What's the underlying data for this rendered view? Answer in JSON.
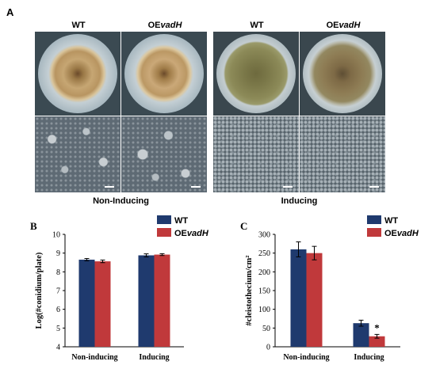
{
  "panel_a": {
    "letter": "A",
    "groups": [
      {
        "label": "Non-Inducing",
        "strains": [
          {
            "prefix": "WT",
            "italic": ""
          },
          {
            "prefix": "OE",
            "italic": "vadH"
          }
        ]
      },
      {
        "label": "Inducing",
        "strains": [
          {
            "prefix": "WT",
            "italic": ""
          },
          {
            "prefix": "OE",
            "italic": "vadH"
          }
        ]
      }
    ]
  },
  "chart_data": [
    {
      "panel_letter": "B",
      "type": "bar",
      "categories": [
        "Non-inducing",
        "Inducing"
      ],
      "series": [
        {
          "name_prefix": "WT",
          "name_italic": "",
          "color": "#1f3a6e",
          "values": [
            8.65,
            8.88
          ],
          "errors": [
            0.06,
            0.08
          ]
        },
        {
          "name_prefix": "OE",
          "name_italic": "vadH",
          "color": "#c0393b",
          "values": [
            8.56,
            8.92
          ],
          "errors": [
            0.07,
            0.05
          ]
        }
      ],
      "ylabel": "Log(#conidium/plate)",
      "ylim": [
        4,
        10
      ],
      "yticks": [
        "4",
        "5",
        "6",
        "7",
        "8",
        "9",
        "10"
      ],
      "grid": false,
      "legend": "top-right"
    },
    {
      "panel_letter": "C",
      "type": "bar",
      "categories": [
        "Non-inducing",
        "Inducing"
      ],
      "series": [
        {
          "name_prefix": "WT",
          "name_italic": "",
          "color": "#1f3a6e",
          "values": [
            260,
            63
          ],
          "errors": [
            20,
            8
          ]
        },
        {
          "name_prefix": "OE",
          "name_italic": "vadH",
          "color": "#c0393b",
          "values": [
            250,
            28
          ],
          "errors": [
            18,
            5
          ]
        }
      ],
      "ylabel": "#cleistothecium/cm²",
      "ylim": [
        0,
        300
      ],
      "yticks": [
        "0",
        "50",
        "100",
        "150",
        "200",
        "250",
        "300"
      ],
      "annotations": [
        {
          "text": "*",
          "category": "Inducing",
          "series": 1
        }
      ],
      "grid": false,
      "legend": "top-right"
    }
  ]
}
